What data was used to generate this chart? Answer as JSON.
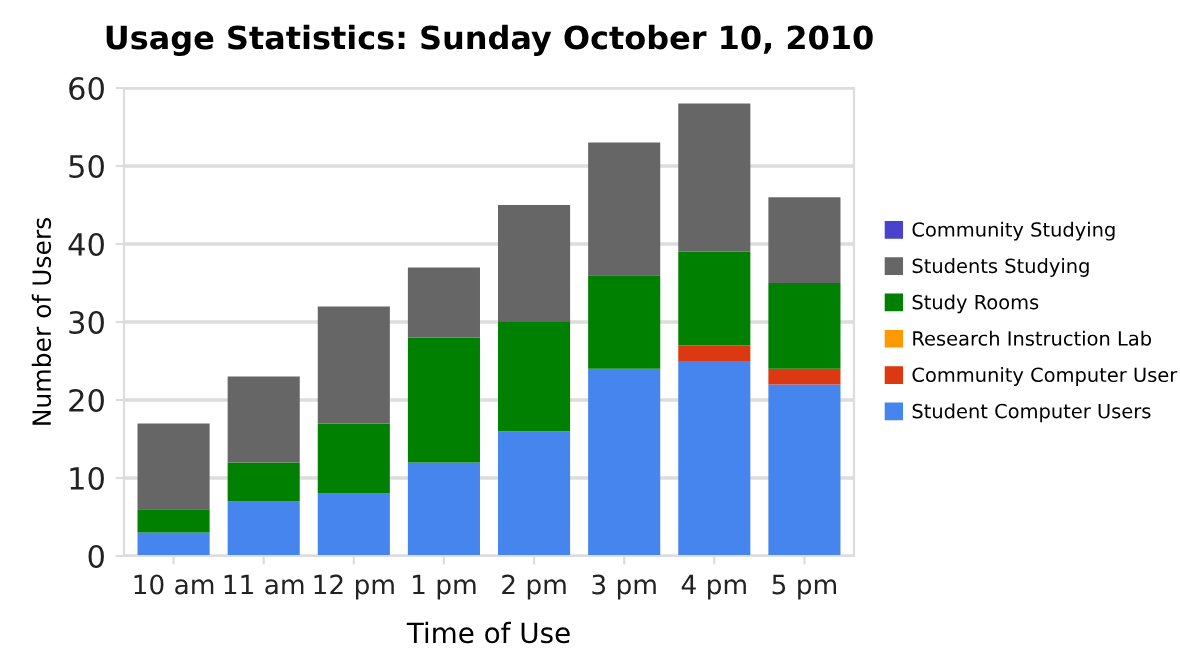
{
  "chart_data": {
    "type": "bar",
    "title": "Usage Statistics: Sunday October 10, 2010",
    "xlabel": "Time of Use",
    "ylabel": "Number of Users",
    "categories": [
      "10 am",
      "11 am",
      "12 pm",
      "1 pm",
      "2 pm",
      "3 pm",
      "4 pm",
      "5 pm"
    ],
    "stacked": true,
    "ylim": [
      0,
      60
    ],
    "yticks": [
      0,
      10,
      20,
      30,
      40,
      50,
      60
    ],
    "grid": "y",
    "legend": "right",
    "series": [
      {
        "name": "Student Computer Users",
        "color": "#4684ee",
        "values": [
          3,
          7,
          8,
          12,
          16,
          24,
          25,
          22
        ]
      },
      {
        "name": "Community Computer User",
        "color": "#dc3912",
        "values": [
          0,
          0,
          0,
          0,
          0,
          0,
          2,
          2
        ]
      },
      {
        "name": "Research Instruction Lab",
        "color": "#ff9900",
        "values": [
          0,
          0,
          0,
          0,
          0,
          0,
          0,
          0
        ]
      },
      {
        "name": "Study Rooms",
        "color": "#008000",
        "values": [
          3,
          5,
          9,
          16,
          14,
          12,
          12,
          11
        ]
      },
      {
        "name": "Students Studying",
        "color": "#666666",
        "values": [
          11,
          11,
          15,
          9,
          15,
          17,
          19,
          11
        ]
      },
      {
        "name": "Community Studying",
        "color": "#4942cc",
        "values": [
          0,
          0,
          0,
          0,
          0,
          0,
          0,
          0
        ]
      }
    ]
  }
}
